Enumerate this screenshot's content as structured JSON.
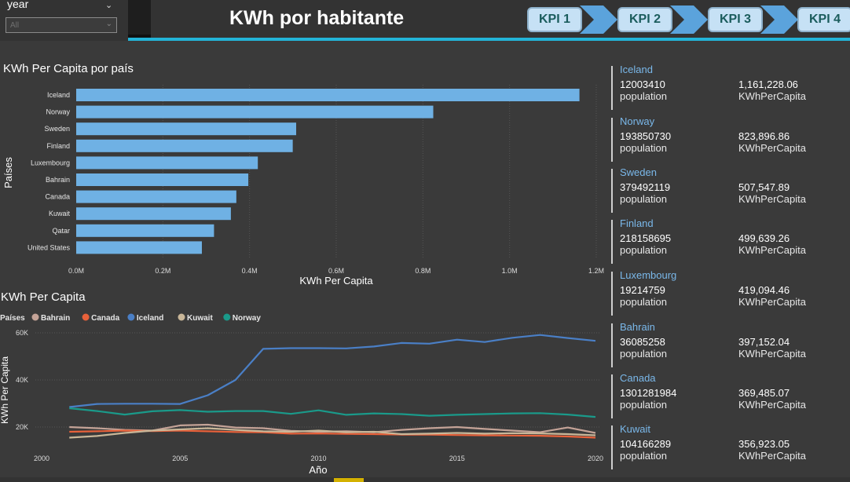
{
  "slicer": {
    "title": "year",
    "value": "All"
  },
  "header": {
    "title": "KWh por habitante",
    "kpi_buttons": [
      "KPI 1",
      "KPI 2",
      "KPI 3",
      "KPI 4"
    ],
    "kpi_color": "#c6e1f5",
    "chevron_color": "#5ba3dc",
    "accent_color": "#23b4d8"
  },
  "bar_section": {
    "title": "KWh Per Capita por país"
  },
  "line_section": {
    "title": "KWh Per Capita"
  },
  "chart_data": [
    {
      "type": "bar",
      "title": "KWh Per Capita por país",
      "xlabel": "KWh Per Capita",
      "ylabel": "Países",
      "categories": [
        "Iceland",
        "Norway",
        "Sweden",
        "Finland",
        "Luxembourg",
        "Bahrain",
        "Canada",
        "Kuwait",
        "Qatar",
        "United States"
      ],
      "values": [
        1161228.06,
        823896.86,
        507547.89,
        499639.26,
        419094.46,
        397152.04,
        369485.07,
        356923.05,
        318000,
        290000
      ],
      "xlim": [
        0,
        1200000
      ],
      "ticks": [
        "0.0M",
        "0.2M",
        "0.4M",
        "0.6M",
        "0.8M",
        "1.0M",
        "1.2M"
      ],
      "bar_color": "#6fb1e4",
      "grid": true
    },
    {
      "type": "line",
      "title": "KWh Per Capita",
      "xlabel": "Año",
      "ylabel": "KWh Per Capita",
      "legend_title": "Países",
      "legend_position": "top-left",
      "x": [
        2001,
        2002,
        2003,
        2004,
        2005,
        2006,
        2007,
        2008,
        2009,
        2010,
        2011,
        2012,
        2013,
        2014,
        2015,
        2016,
        2017,
        2018,
        2019,
        2020
      ],
      "xlim": [
        1999,
        2021
      ],
      "x_ticks": [
        "2000",
        "2005",
        "2010",
        "2015",
        "2020"
      ],
      "ylim": [
        10000,
        62000
      ],
      "y_ticks": [
        "20K",
        "40K",
        "60K"
      ],
      "series": [
        {
          "name": "Bahrain",
          "color": "#c4a397",
          "values": [
            20000,
            19500,
            18800,
            18500,
            20700,
            21000,
            19800,
            19500,
            18400,
            18000,
            18200,
            17800,
            18800,
            19500,
            20000,
            19200,
            18500,
            17800,
            19800,
            17500
          ]
        },
        {
          "name": "Canada",
          "color": "#e8613a",
          "values": [
            18000,
            18200,
            18500,
            18300,
            18500,
            18200,
            17900,
            17800,
            17200,
            17300,
            17100,
            17000,
            16800,
            16800,
            16600,
            16500,
            16400,
            16300,
            16000,
            15500
          ]
        },
        {
          "name": "Iceland",
          "color": "#4a7fc6",
          "values": [
            28500,
            29800,
            29900,
            29900,
            29800,
            33500,
            40000,
            53200,
            53500,
            53500,
            53400,
            54200,
            55700,
            55400,
            57100,
            56100,
            57900,
            59100,
            57800,
            56600
          ]
        },
        {
          "name": "Kuwait",
          "color": "#c9b799",
          "values": [
            15500,
            16200,
            17500,
            18500,
            19000,
            19500,
            18800,
            18200,
            18000,
            18500,
            17800,
            18000,
            17000,
            17200,
            17500,
            17200,
            17400,
            17300,
            17000,
            16500
          ]
        },
        {
          "name": "Norway",
          "color": "#1a9a8a",
          "values": [
            28000,
            26800,
            25300,
            26700,
            27200,
            26500,
            26800,
            26800,
            25600,
            27100,
            25200,
            25800,
            25500,
            24800,
            25200,
            25500,
            25800,
            25900,
            25300,
            24300
          ]
        }
      ],
      "grid": true
    }
  ],
  "countries": [
    {
      "name": "Iceland",
      "population": "12003410",
      "population_label": "population",
      "kwh": "1,161,228.06",
      "kwh_label": "KWhPerCapita"
    },
    {
      "name": "Norway",
      "population": "193850730",
      "population_label": "population",
      "kwh": "823,896.86",
      "kwh_label": "KWhPerCapita"
    },
    {
      "name": "Sweden",
      "population": "379492119",
      "population_label": "population",
      "kwh": "507,547.89",
      "kwh_label": "KWhPerCapita"
    },
    {
      "name": "Finland",
      "population": "218158695",
      "population_label": "population",
      "kwh": "499,639.26",
      "kwh_label": "KWhPerCapita"
    },
    {
      "name": "Luxembourg",
      "population": "19214759",
      "population_label": "population",
      "kwh": "419,094.46",
      "kwh_label": "KWhPerCapita"
    },
    {
      "name": "Bahrain",
      "population": "36085258",
      "population_label": "population",
      "kwh": "397,152.04",
      "kwh_label": "KWhPerCapita"
    },
    {
      "name": "Canada",
      "population": "1301281984",
      "population_label": "population",
      "kwh": "369,485.07",
      "kwh_label": "KWhPerCapita"
    },
    {
      "name": "Kuwait",
      "population": "104166289",
      "population_label": "population",
      "kwh": "356,923.05",
      "kwh_label": "KWhPerCapita"
    }
  ]
}
